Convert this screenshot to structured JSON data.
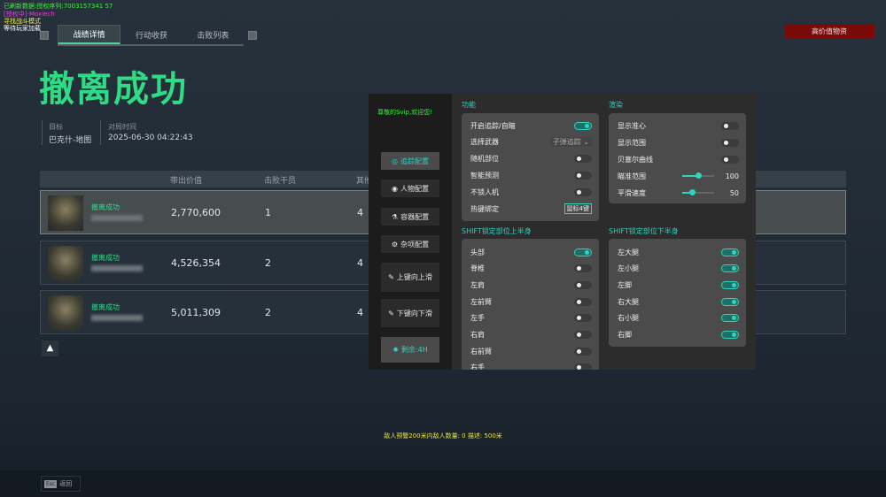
{
  "overlay": {
    "line1": "已刷新数据:授权序列:7003157341 57",
    "line2": "[授权中]-Moxiech",
    "line3": "寻找战斗模式",
    "line4": "等待玩家加载"
  },
  "tabs": [
    {
      "label": "战绩详情",
      "active": true
    },
    {
      "label": "行动收获"
    },
    {
      "label": "击败列表"
    }
  ],
  "top_button": "高价值物资",
  "title": "撤离成功",
  "info": {
    "target_label": "目标",
    "target_value": "巴克什-地图",
    "time_label": "对局时间",
    "time_value": "2025-06-30 04:22:43"
  },
  "table": {
    "headers": [
      "带出价值",
      "击败干员",
      "其他"
    ],
    "rows": [
      {
        "status": "撤离成功",
        "value": "2,770,600",
        "kills": "1",
        "other": "4"
      },
      {
        "status": "撤离成功",
        "value": "4,526,354",
        "kills": "2",
        "other": "4"
      },
      {
        "status": "撤离成功",
        "value": "5,011,309",
        "kills": "2",
        "other": "4"
      }
    ]
  },
  "bottom_notice": "敌人预警200米内敌人数量: 0  描述: 500米",
  "esc": {
    "key": "Esc",
    "label": "返回"
  },
  "panel": {
    "welcome": "尊敬的Svip,欢迎您!",
    "sidebar": [
      {
        "label": "追踪配置",
        "icon": "crosshair-icon",
        "glyph": "◎",
        "active": true
      },
      {
        "label": "人物配置",
        "icon": "eye-icon",
        "glyph": "◉"
      },
      {
        "label": "容器配置",
        "icon": "flask-icon",
        "glyph": "⚗"
      },
      {
        "label": "杂项配置",
        "icon": "gear-icon",
        "glyph": "⚙"
      },
      {
        "label": "上键向上滑",
        "icon": "dropper-icon",
        "glyph": "✎"
      },
      {
        "label": "下键向下滑",
        "icon": "dropper-icon",
        "glyph": "✎"
      },
      {
        "label": "剩余:4H",
        "icon": "badge-icon",
        "glyph": "✹",
        "active": true
      }
    ],
    "func": {
      "title": "功能",
      "enable": {
        "label": "开启追踪/自瞄",
        "on": true
      },
      "weapon": {
        "label": "选择武器",
        "value": "子弹追踪"
      },
      "toggles": [
        {
          "label": "随机部位",
          "on": false
        },
        {
          "label": "智能预测",
          "on": false
        },
        {
          "label": "不锁人机",
          "on": false
        }
      ],
      "hotkey": {
        "label": "热键绑定",
        "value": "鼠标4键"
      }
    },
    "render": {
      "title": "渲染",
      "toggles": [
        {
          "label": "显示准心",
          "on": false
        },
        {
          "label": "显示范围",
          "on": false
        },
        {
          "label": "贝塞尔曲线",
          "on": false
        }
      ],
      "sliders": [
        {
          "label": "瞄准范围",
          "value": 100,
          "fill": 0.5
        },
        {
          "label": "平滑速度",
          "value": 50,
          "fill": 0.3
        }
      ]
    },
    "upper": {
      "title": "SHIFT锁定部位上半身",
      "items": [
        {
          "label": "头部",
          "on": true
        },
        {
          "label": "脊椎",
          "on": false
        },
        {
          "label": "左肩",
          "on": false
        },
        {
          "label": "左前臂",
          "on": false
        },
        {
          "label": "左手",
          "on": false
        },
        {
          "label": "右肩",
          "on": false
        },
        {
          "label": "右前臂",
          "on": false
        },
        {
          "label": "右手",
          "on": false
        }
      ]
    },
    "lower": {
      "title": "SHIFT锁定部位下半身",
      "items": [
        {
          "label": "左大腿",
          "on": true
        },
        {
          "label": "左小腿",
          "on": true
        },
        {
          "label": "左脚",
          "on": true
        },
        {
          "label": "右大腿",
          "on": true
        },
        {
          "label": "右小腿",
          "on": true
        },
        {
          "label": "右脚",
          "on": true
        }
      ]
    }
  },
  "colors": {
    "accent": "#2ed3c2",
    "success": "#2fdc86",
    "danger": "#7a0a0a"
  }
}
